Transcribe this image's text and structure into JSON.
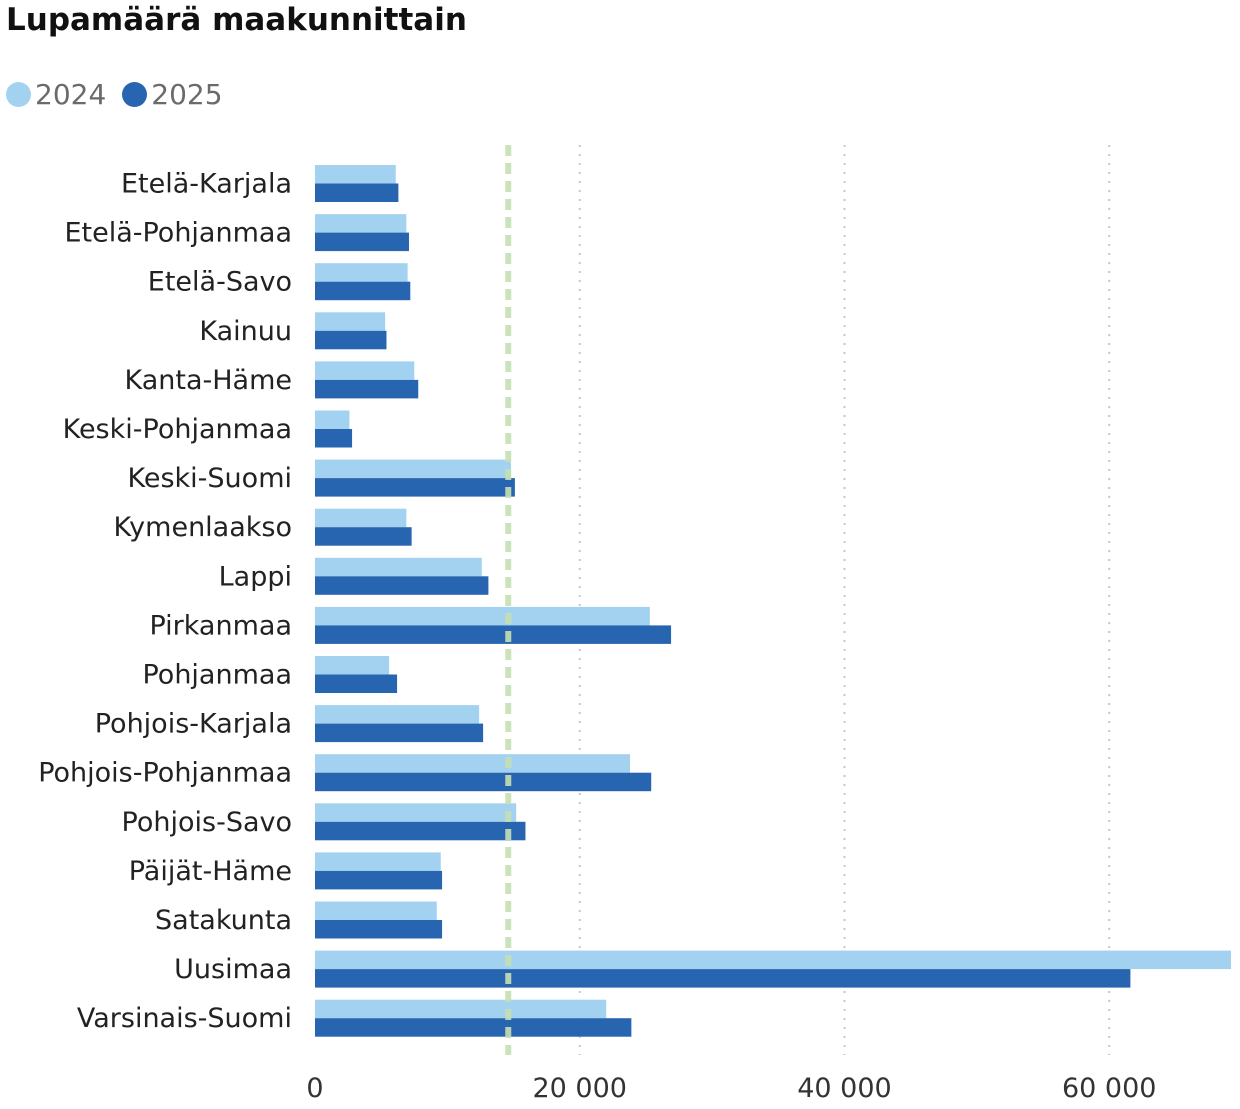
{
  "chart_data": {
    "type": "bar",
    "orientation": "horizontal",
    "title": "Lupamäärä maakunnittain",
    "categories": [
      "Etelä-Karjala",
      "Etelä-Pohjanmaa",
      "Etelä-Savo",
      "Kainuu",
      "Kanta-Häme",
      "Keski-Pohjanmaa",
      "Keski-Suomi",
      "Kymenlaakso",
      "Lappi",
      "Pirkanmaa",
      "Pohjanmaa",
      "Pohjois-Karjala",
      "Pohjois-Pohjanmaa",
      "Pohjois-Savo",
      "Päijät-Häme",
      "Satakunta",
      "Uusimaa",
      "Varsinais-Suomi"
    ],
    "series": [
      {
        "name": "2024",
        "color": "#a3d2f0",
        "values": [
          6100,
          6900,
          7000,
          5300,
          7500,
          2600,
          14800,
          6900,
          12600,
          25300,
          5600,
          12400,
          23800,
          15200,
          9500,
          9200,
          69200,
          22000
        ]
      },
      {
        "name": "2025",
        "color": "#2865b0",
        "values": [
          6300,
          7100,
          7200,
          5400,
          7800,
          2800,
          15100,
          7300,
          13100,
          26900,
          6200,
          12700,
          25400,
          15900,
          9600,
          9600,
          61600,
          23900
        ]
      }
    ],
    "reference_line": {
      "value": 14600,
      "color": "#c6e0b4",
      "style": "dashed"
    },
    "xlim": [
      0,
      69200
    ],
    "xticks": [
      0,
      20000,
      40000,
      60000
    ],
    "xtick_labels": [
      "0",
      "20 000",
      "40 000",
      "60 000"
    ],
    "grid": "vertical dotted",
    "legend_position": "top-left"
  }
}
